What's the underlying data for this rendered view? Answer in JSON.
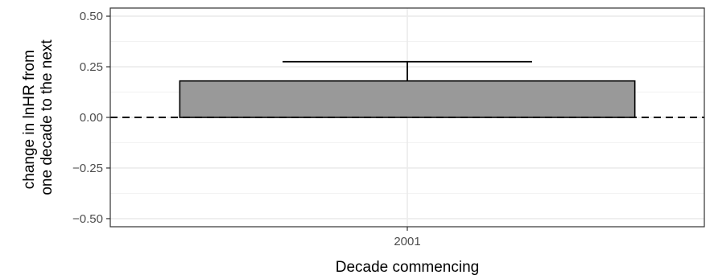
{
  "chart_data": {
    "type": "bar",
    "categories": [
      "2001"
    ],
    "values": [
      0.18
    ],
    "error_bars": [
      {
        "lower": 0.18,
        "upper": 0.275
      }
    ],
    "error_bar_direction": "upper",
    "title": "",
    "xlabel": "Decade commencing",
    "ylabel_lines": [
      "change in lnHR from",
      "one decade to the next"
    ],
    "ylim": [
      -0.54,
      0.54
    ],
    "y_ticks": [
      0.5,
      0.25,
      0.0,
      -0.25,
      -0.5
    ],
    "y_tick_labels": [
      "0.50",
      "0.25",
      "0.00",
      "−0.25",
      "−0.50"
    ],
    "reference_line": {
      "y": 0,
      "style": "dashed",
      "color": "#000000"
    },
    "grid": true,
    "theme": "bw",
    "colors": {
      "bar_fill": "#999999",
      "bar_outline": "#000000",
      "grid_major": "#ebebeb",
      "grid_minor": "#f2f2f2",
      "panel_border": "#333333"
    }
  }
}
